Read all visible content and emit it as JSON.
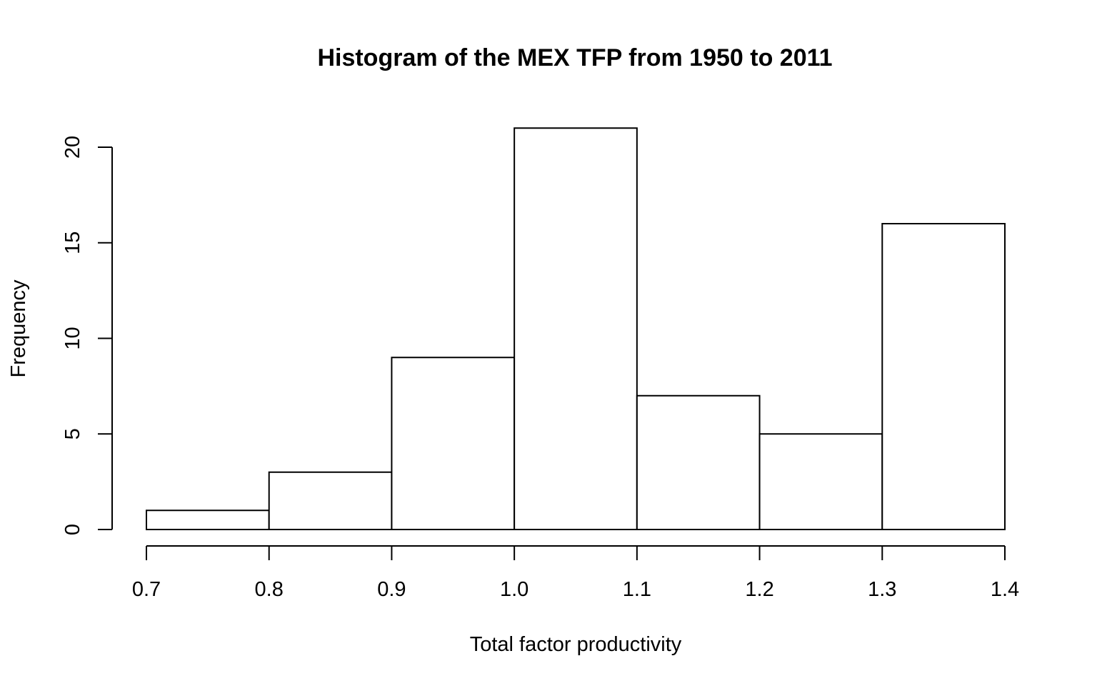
{
  "chart_data": {
    "type": "bar",
    "title": "Histogram of the MEX TFP from 1950 to 2011",
    "xlabel": "Total factor productivity",
    "ylabel": "Frequency",
    "bin_edges": [
      0.7,
      0.8,
      0.9,
      1.0,
      1.1,
      1.2,
      1.3,
      1.4
    ],
    "values": [
      1,
      3,
      9,
      21,
      7,
      5,
      16
    ],
    "xlim": [
      0.7,
      1.4
    ],
    "ylim": [
      0,
      21
    ],
    "x_ticks": [
      "0.7",
      "0.8",
      "0.9",
      "1.0",
      "1.1",
      "1.2",
      "1.3",
      "1.4"
    ],
    "y_ticks": [
      "0",
      "5",
      "10",
      "15",
      "20"
    ],
    "grid": false
  }
}
